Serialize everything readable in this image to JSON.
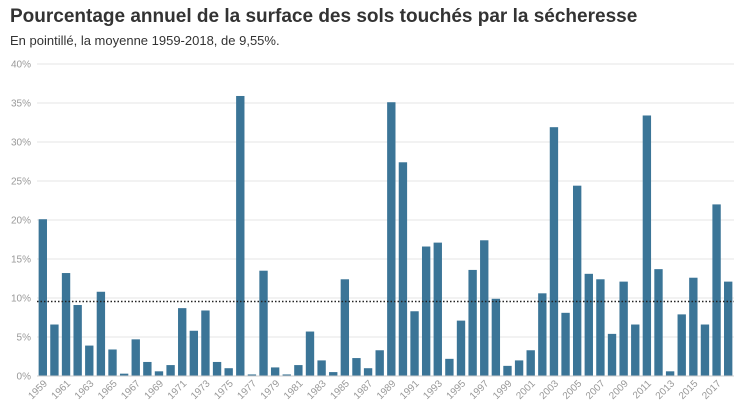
{
  "title": "Pourcentage annuel de la surface des sols touchés par la sécheresse",
  "subtitle": "En pointillé, la moyenne 1959-2018, de 9,55%.",
  "chart_data": {
    "type": "bar",
    "title": "Pourcentage annuel de la surface des sols touchés par la sécheresse",
    "subtitle": "En pointillé, la moyenne 1959-2018, de 9,55%.",
    "xlabel": "",
    "ylabel": "",
    "ylim": [
      0,
      40
    ],
    "yticks": [
      0,
      5,
      10,
      15,
      20,
      25,
      30,
      35,
      40
    ],
    "ytick_labels": [
      "0%",
      "5%",
      "10%",
      "15%",
      "20%",
      "25%",
      "30%",
      "35%",
      "40%"
    ],
    "grid": true,
    "bar_color": "#3b7597",
    "average": 9.55,
    "xtick_labels": [
      "1959",
      "1961",
      "1963",
      "1965",
      "1967",
      "1969",
      "1971",
      "1973",
      "1975",
      "1977",
      "1979",
      "1981",
      "1983",
      "1985",
      "1987",
      "1989",
      "1991",
      "1993",
      "1995",
      "1997",
      "1999",
      "2001",
      "2003",
      "2005",
      "2007",
      "2009",
      "2011",
      "2013",
      "2015",
      "2017"
    ],
    "categories": [
      "1959",
      "1960",
      "1961",
      "1962",
      "1963",
      "1964",
      "1965",
      "1966",
      "1967",
      "1968",
      "1969",
      "1970",
      "1971",
      "1972",
      "1973",
      "1974",
      "1975",
      "1976",
      "1977",
      "1978",
      "1979",
      "1980",
      "1981",
      "1982",
      "1983",
      "1984",
      "1985",
      "1986",
      "1987",
      "1988",
      "1989",
      "1990",
      "1991",
      "1992",
      "1993",
      "1994",
      "1995",
      "1996",
      "1997",
      "1998",
      "1999",
      "2000",
      "2001",
      "2002",
      "2003",
      "2004",
      "2005",
      "2006",
      "2007",
      "2008",
      "2009",
      "2010",
      "2011",
      "2012",
      "2013",
      "2014",
      "2015",
      "2016",
      "2017",
      "2018"
    ],
    "values": [
      20.1,
      6.6,
      13.2,
      9.1,
      3.9,
      10.8,
      3.4,
      0.3,
      4.7,
      1.8,
      0.6,
      1.4,
      8.7,
      5.8,
      8.4,
      1.8,
      1.0,
      35.9,
      0.2,
      13.5,
      1.1,
      0.2,
      1.4,
      5.7,
      2.0,
      0.5,
      12.4,
      2.3,
      1.0,
      3.3,
      35.1,
      27.4,
      8.3,
      16.6,
      17.1,
      2.2,
      7.1,
      13.6,
      17.4,
      9.9,
      1.3,
      2.0,
      3.3,
      10.6,
      31.9,
      8.1,
      24.4,
      13.1,
      12.4,
      5.4,
      12.1,
      6.6,
      33.4,
      13.7,
      0.6,
      7.9,
      12.6,
      6.6,
      22.0,
      12.1
    ]
  }
}
